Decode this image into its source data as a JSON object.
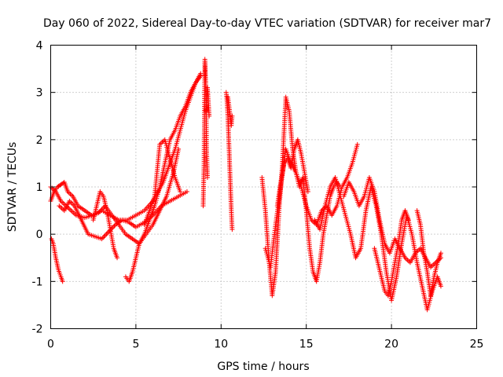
{
  "chart_data": {
    "type": "scatter",
    "title": "Day 060 of 2022, Sidereal Day-to-day VTEC variation (SDTVAR) for receiver mar7",
    "xlabel": "GPS time / hours",
    "ylabel": "SDTVAR / TECUs",
    "xlim": [
      0,
      25
    ],
    "ylim": [
      -2,
      4
    ],
    "xticks": [
      "0",
      "5",
      "10",
      "15",
      "20",
      "25"
    ],
    "yticks": [
      "-2",
      "-1",
      "0",
      "1",
      "2",
      "3",
      "4"
    ],
    "grid": true,
    "marker": "+",
    "series": [
      {
        "name": "SDTVAR",
        "color": "#ff0000",
        "tracks": [
          {
            "x": [
              0.0,
              0.3,
              0.6,
              0.9,
              1.2,
              1.5,
              2.0,
              2.5,
              3.0,
              3.5,
              4.0,
              4.5,
              5.0,
              5.5,
              6.0,
              6.3,
              6.6,
              7.0,
              7.3,
              7.6,
              7.9,
              8.2,
              8.5,
              8.8
            ],
            "y": [
              1.0,
              0.9,
              0.7,
              0.6,
              0.5,
              0.4,
              0.35,
              0.4,
              0.5,
              0.4,
              0.3,
              0.3,
              0.4,
              0.5,
              0.7,
              0.9,
              1.1,
              1.5,
              1.8,
              2.2,
              2.6,
              2.9,
              3.2,
              3.4
            ]
          },
          {
            "x": [
              0.0,
              0.2,
              0.4,
              0.6,
              0.8,
              1.0,
              1.3,
              1.6,
              2.0,
              2.4,
              2.8,
              3.2,
              3.6,
              4.0,
              4.4,
              4.8,
              5.2,
              5.6,
              6.0,
              6.4,
              6.8,
              7.2,
              7.5
            ],
            "y": [
              0.7,
              0.9,
              1.0,
              1.05,
              1.1,
              0.9,
              0.8,
              0.6,
              0.5,
              0.4,
              0.45,
              0.6,
              0.4,
              0.2,
              0.0,
              -0.1,
              -0.2,
              0.0,
              0.2,
              0.5,
              0.8,
              1.3,
              1.8
            ]
          },
          {
            "x": [
              0.05,
              0.15,
              0.3,
              0.45,
              0.6,
              0.7
            ],
            "y": [
              -0.1,
              -0.2,
              -0.5,
              -0.75,
              -0.9,
              -1.0
            ]
          },
          {
            "x": [
              0.5,
              0.8,
              1.1,
              1.4,
              1.8,
              2.2,
              2.6,
              3.0,
              3.4,
              3.8,
              4.2,
              4.6,
              5.0,
              5.5,
              6.0,
              6.5,
              7.0,
              7.5,
              8.0
            ],
            "y": [
              0.6,
              0.5,
              0.7,
              0.6,
              0.3,
              0.0,
              -0.05,
              -0.1,
              0.05,
              0.2,
              0.3,
              0.25,
              0.15,
              0.25,
              0.4,
              0.6,
              0.7,
              0.8,
              0.9
            ]
          },
          {
            "x": [
              2.5,
              2.7,
              2.9,
              3.1,
              3.3,
              3.5,
              3.7,
              3.9
            ],
            "y": [
              0.3,
              0.6,
              0.9,
              0.8,
              0.5,
              0.1,
              -0.3,
              -0.5
            ]
          },
          {
            "x": [
              4.4,
              4.6,
              4.8,
              5.0,
              5.2,
              5.5,
              5.8,
              6.1,
              6.4,
              6.7,
              7.0,
              7.3,
              7.6,
              7.9,
              8.2,
              8.5,
              8.8
            ],
            "y": [
              -0.9,
              -1.0,
              -0.8,
              -0.5,
              -0.2,
              0.0,
              0.3,
              0.6,
              1.0,
              1.5,
              2.0,
              2.2,
              2.5,
              2.7,
              3.0,
              3.2,
              3.35
            ]
          },
          {
            "x": [
              5.5,
              5.8,
              6.1,
              6.4,
              6.7,
              7.0,
              7.3,
              7.6
            ],
            "y": [
              0.2,
              0.5,
              0.8,
              1.9,
              2.0,
              1.6,
              1.2,
              0.9
            ]
          },
          {
            "x": [
              8.95,
              9.0,
              9.05,
              9.1,
              9.15,
              9.2
            ],
            "y": [
              0.6,
              1.5,
              3.7,
              3.2,
              1.8,
              1.2
            ]
          },
          {
            "x": [
              9.1,
              9.15,
              9.2,
              9.25,
              9.3
            ],
            "y": [
              2.6,
              2.9,
              3.1,
              2.8,
              2.5
            ]
          },
          {
            "x": [
              10.3,
              10.35,
              10.4,
              10.45,
              10.5,
              10.55,
              10.6,
              10.65
            ],
            "y": [
              3.0,
              2.8,
              2.5,
              2.0,
              1.5,
              1.0,
              0.5,
              0.1
            ]
          },
          {
            "x": [
              10.4,
              10.5,
              10.6,
              10.65
            ],
            "y": [
              2.9,
              2.6,
              2.3,
              2.5
            ]
          },
          {
            "x": [
              12.4,
              12.6,
              12.8,
              13.0,
              13.2,
              13.4,
              13.6,
              13.8,
              14.0,
              14.2,
              14.4,
              14.6,
              14.8,
              15.0,
              15.2,
              15.4,
              15.6,
              15.8,
              16.0,
              16.2,
              16.4,
              16.6,
              16.8,
              17.0
            ],
            "y": [
              1.2,
              0.5,
              -0.5,
              -1.3,
              -0.8,
              0.5,
              1.5,
              2.9,
              2.6,
              1.8,
              1.3,
              1.0,
              1.2,
              0.5,
              -0.3,
              -0.8,
              -1.0,
              -0.6,
              0.0,
              0.4,
              0.8,
              1.0,
              1.1,
              1.0
            ]
          },
          {
            "x": [
              12.6,
              12.9,
              13.2,
              13.5,
              13.8,
              14.1,
              14.4,
              14.7,
              15.0,
              15.3,
              15.6,
              15.9,
              16.2,
              16.5,
              16.8,
              17.1,
              17.4,
              17.7,
              18.0
            ],
            "y": [
              -0.3,
              -0.7,
              0.2,
              1.0,
              1.8,
              1.5,
              1.3,
              1.0,
              0.6,
              0.3,
              0.2,
              0.5,
              0.6,
              0.4,
              0.6,
              1.0,
              1.2,
              1.5,
              1.9
            ]
          },
          {
            "x": [
              13.3,
              13.5,
              13.7,
              13.9,
              14.1,
              14.3,
              14.5,
              14.7,
              14.9,
              15.1
            ],
            "y": [
              0.6,
              1.1,
              1.5,
              1.6,
              1.4,
              1.8,
              2.0,
              1.7,
              1.3,
              0.9
            ]
          },
          {
            "x": [
              15.5,
              15.8,
              16.1,
              16.4,
              16.7,
              17.0,
              17.3,
              17.6,
              17.9,
              18.2,
              18.5,
              18.8,
              19.1,
              19.4,
              19.7,
              20.0,
              20.3,
              20.6,
              20.9,
              21.2,
              21.5,
              21.8,
              22.1,
              22.4,
              22.7,
              22.9
            ],
            "y": [
              0.3,
              0.1,
              0.6,
              1.0,
              1.2,
              0.8,
              0.4,
              0.0,
              -0.5,
              -0.3,
              0.5,
              1.0,
              0.6,
              0.0,
              -0.8,
              -1.4,
              -0.9,
              -0.2,
              0.4,
              0.0,
              -0.6,
              -1.1,
              -1.6,
              -1.2,
              -0.9,
              -1.1
            ]
          },
          {
            "x": [
              17.2,
              17.5,
              17.8,
              18.1,
              18.4,
              18.7,
              19.0,
              19.3,
              19.6,
              19.9,
              20.2,
              20.5,
              20.8,
              21.1,
              21.4,
              21.7,
              22.0,
              22.3,
              22.6,
              22.9
            ],
            "y": [
              0.8,
              1.1,
              0.9,
              0.6,
              0.8,
              1.2,
              0.9,
              0.3,
              -0.2,
              -0.4,
              -0.1,
              -0.3,
              -0.5,
              -0.6,
              -0.4,
              -0.3,
              -0.5,
              -0.7,
              -0.6,
              -0.5
            ]
          },
          {
            "x": [
              19.0,
              19.2,
              19.4,
              19.6,
              19.8,
              20.0,
              20.2,
              20.4,
              20.6,
              20.8,
              21.0
            ],
            "y": [
              -0.3,
              -0.6,
              -0.9,
              -1.2,
              -1.3,
              -1.0,
              -0.6,
              -0.2,
              0.3,
              0.5,
              0.3
            ]
          },
          {
            "x": [
              21.5,
              21.7,
              21.9,
              22.1,
              22.3,
              22.5,
              22.7,
              22.9
            ],
            "y": [
              0.5,
              0.2,
              -0.4,
              -0.8,
              -1.3,
              -0.9,
              -0.6,
              -0.4
            ]
          }
        ]
      }
    ]
  }
}
